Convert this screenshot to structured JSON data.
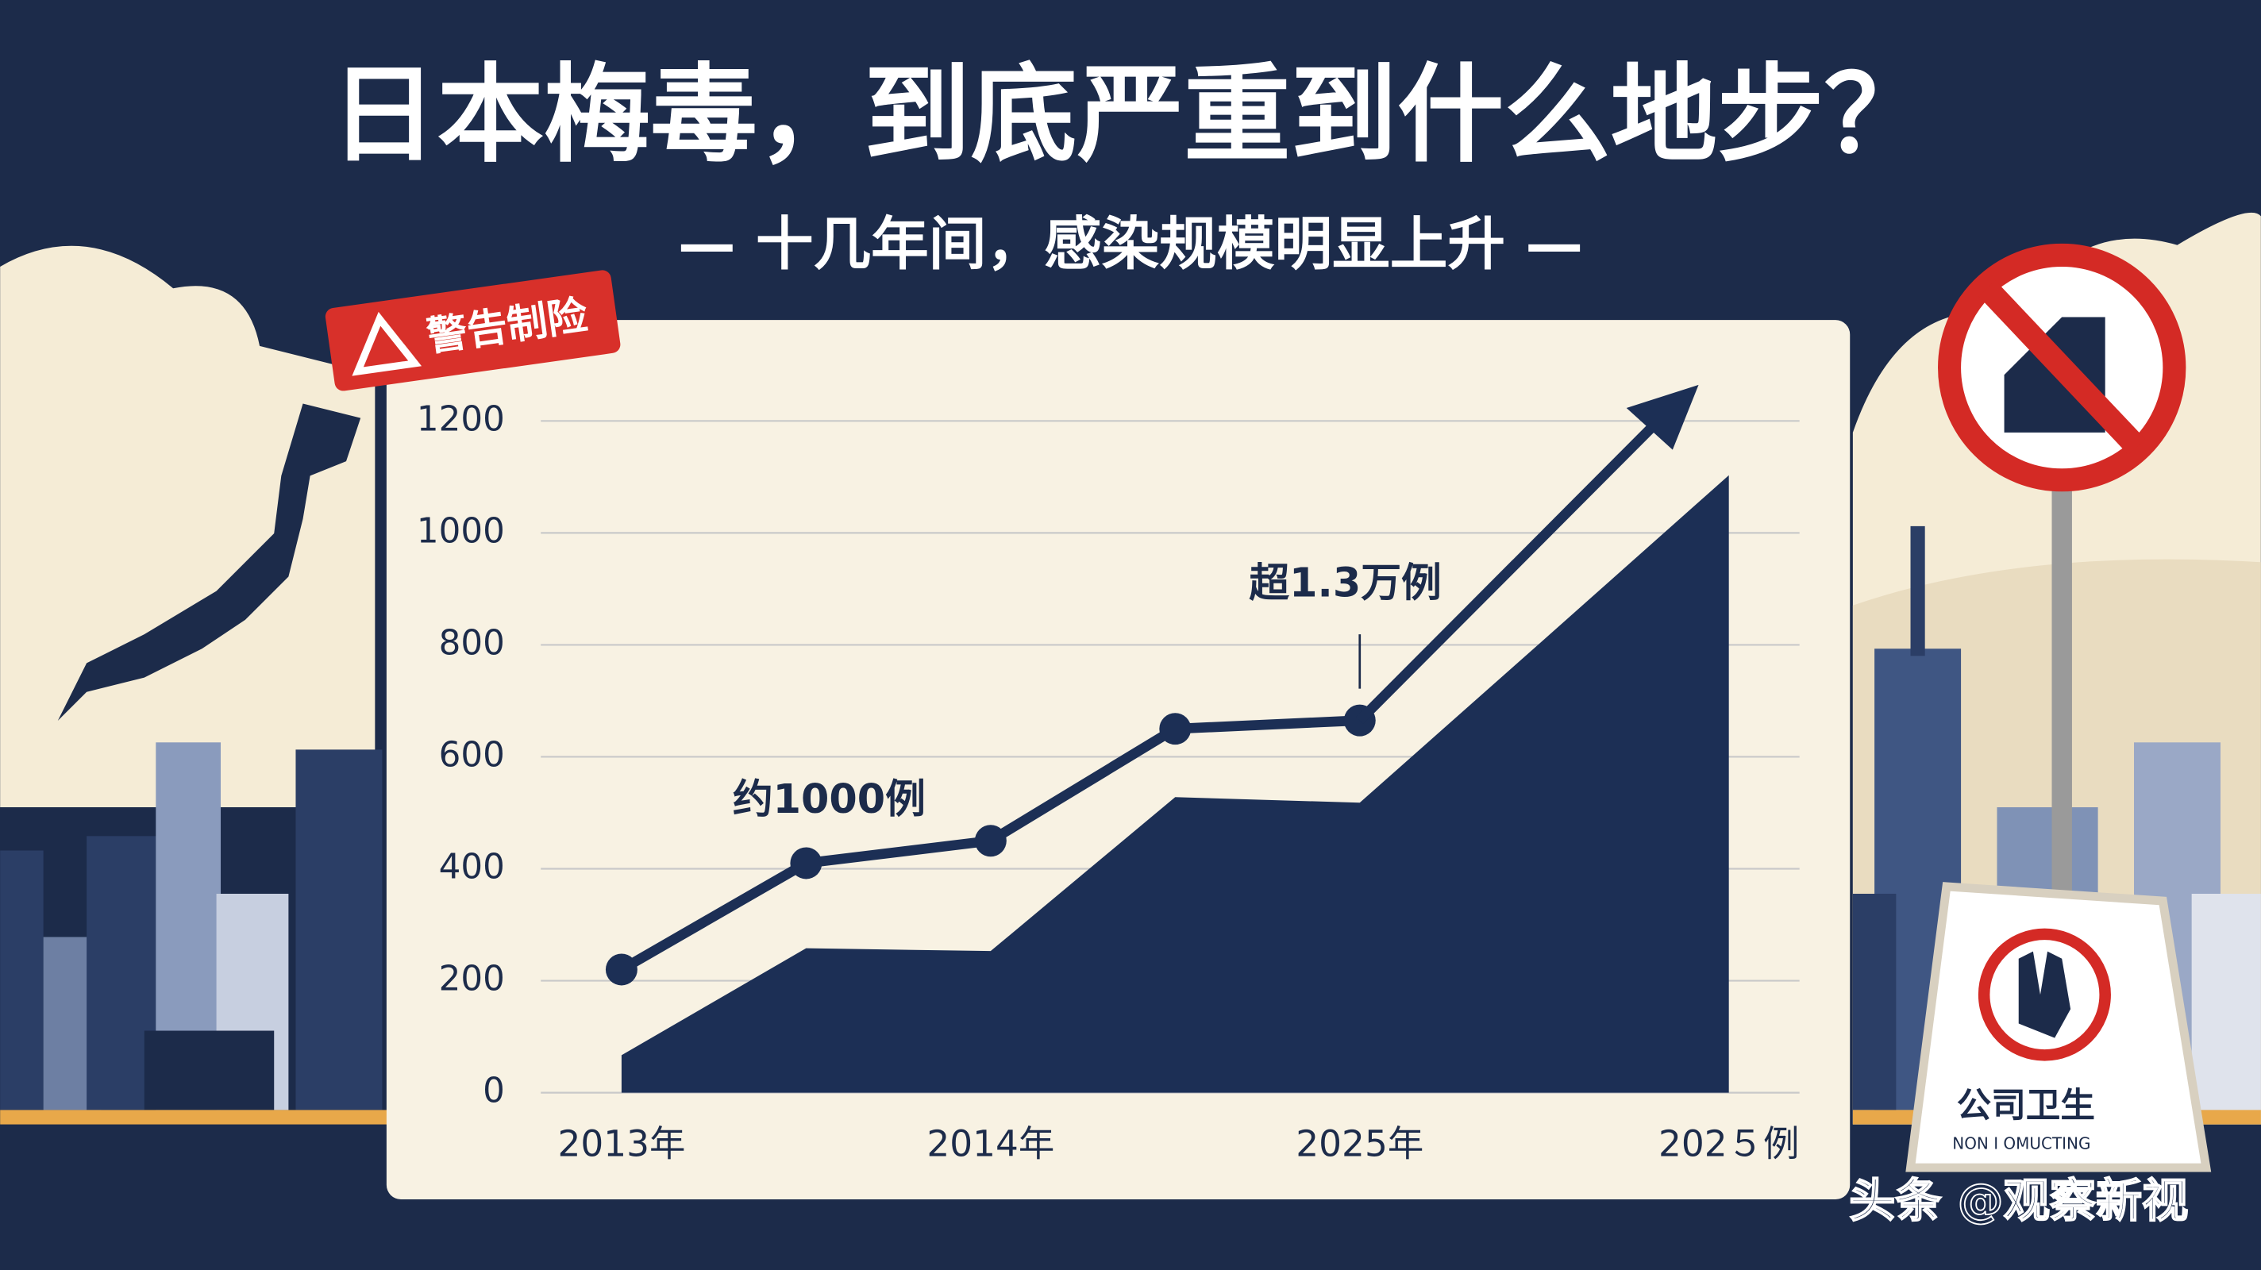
{
  "chart_data": {
    "type": "line",
    "title": "日本梅毒，到底严重到什么地步？",
    "subtitle": "— 十几年间，感染规模明显上升 —",
    "categories": [
      "2013年",
      null,
      "2014年",
      null,
      "2025年",
      null,
      "202５例"
    ],
    "series": [
      {
        "style": "area",
        "color": "#1c2f55",
        "values": [
          67,
          258,
          253,
          528,
          518,
          810,
          1103
        ]
      },
      {
        "style": "line",
        "color": "#1c2f55",
        "values": [
          220,
          410,
          450,
          650,
          665,
          null,
          null
        ]
      }
    ],
    "annotations": [
      "约1000例",
      "超1.3万例"
    ],
    "ylim": [
      0,
      1200
    ],
    "yticks": [
      0,
      200,
      400,
      600,
      800,
      1000,
      1200
    ],
    "grid": true
  },
  "decor": {
    "tag": "警告制险",
    "sign_title": "公司卫生",
    "sign_subtitle": "NON I OMUCTING",
    "watermark": "头条 @观察新视"
  }
}
